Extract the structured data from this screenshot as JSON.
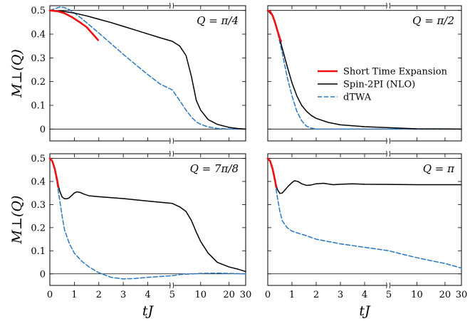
{
  "chart_data": [
    {
      "type": "line",
      "panel_label": "Q = π/4",
      "ylabel": "M⊥(Q)",
      "xlabel": "",
      "series": [
        {
          "name": "Short Time Expansion",
          "color": "#ee1111",
          "style": "solid",
          "points": [
            [
              0,
              0.5
            ],
            [
              0.3,
              0.497
            ],
            [
              0.6,
              0.488
            ],
            [
              0.9,
              0.472
            ],
            [
              1.2,
              0.452
            ],
            [
              1.5,
              0.43
            ],
            [
              1.8,
              0.395
            ],
            [
              1.97,
              0.375
            ]
          ]
        },
        {
          "name": "Spin-2PI (NLO)",
          "color": "#000000",
          "style": "solid",
          "points": [
            [
              0,
              0.5
            ],
            [
              0.5,
              0.497
            ],
            [
              1,
              0.489
            ],
            [
              1.5,
              0.477
            ],
            [
              2,
              0.463
            ],
            [
              2.5,
              0.449
            ],
            [
              3,
              0.433
            ],
            [
              3.5,
              0.417
            ],
            [
              4,
              0.401
            ],
            [
              4.5,
              0.385
            ],
            [
              5,
              0.37
            ],
            [
              6,
              0.35
            ],
            [
              7,
              0.31
            ],
            [
              8,
              0.22
            ],
            [
              9,
              0.12
            ],
            [
              10,
              0.08
            ],
            [
              12,
              0.04
            ],
            [
              15,
              0.02
            ],
            [
              20,
              0.007
            ],
            [
              25,
              0.002
            ],
            [
              30,
              0.0
            ]
          ]
        },
        {
          "name": "dTWA",
          "color": "#2a78c0",
          "style": "dashed",
          "points": [
            [
              0,
              0.5
            ],
            [
              0.2,
              0.507
            ],
            [
              0.4,
              0.514
            ],
            [
              0.6,
              0.512
            ],
            [
              0.8,
              0.503
            ],
            [
              1,
              0.489
            ],
            [
              1.3,
              0.466
            ],
            [
              1.6,
              0.44
            ],
            [
              2,
              0.405
            ],
            [
              2.5,
              0.36
            ],
            [
              3,
              0.315
            ],
            [
              3.5,
              0.272
            ],
            [
              4,
              0.23
            ],
            [
              4.5,
              0.19
            ],
            [
              5,
              0.165
            ],
            [
              6,
              0.12
            ],
            [
              7,
              0.08
            ],
            [
              8,
              0.05
            ],
            [
              9,
              0.03
            ],
            [
              10,
              0.02
            ],
            [
              12,
              0.009
            ],
            [
              15,
              0.003
            ],
            [
              20,
              0.0
            ],
            [
              30,
              0.0
            ]
          ]
        }
      ]
    },
    {
      "type": "line",
      "panel_label": "Q = π/2",
      "ylabel": "",
      "xlabel": "",
      "legend": {
        "position": "right",
        "entries": [
          "Short Time Expansion",
          "Spin-2PI (NLO)",
          "dTWA"
        ]
      },
      "series": [
        {
          "name": "Short Time Expansion",
          "color": "#ee1111",
          "style": "solid",
          "points": [
            [
              0,
              0.5
            ],
            [
              0.1,
              0.495
            ],
            [
              0.2,
              0.478
            ],
            [
              0.3,
              0.45
            ],
            [
              0.4,
              0.415
            ],
            [
              0.5,
              0.382
            ],
            [
              0.55,
              0.37
            ]
          ]
        },
        {
          "name": "Spin-2PI (NLO)",
          "color": "#000000",
          "style": "solid",
          "points": [
            [
              0,
              0.5
            ],
            [
              0.2,
              0.478
            ],
            [
              0.4,
              0.415
            ],
            [
              0.6,
              0.34
            ],
            [
              0.8,
              0.265
            ],
            [
              1,
              0.195
            ],
            [
              1.2,
              0.14
            ],
            [
              1.4,
              0.1
            ],
            [
              1.6,
              0.075
            ],
            [
              1.8,
              0.057
            ],
            [
              2,
              0.045
            ],
            [
              2.5,
              0.028
            ],
            [
              3,
              0.018
            ],
            [
              4,
              0.01
            ],
            [
              5,
              0.006
            ],
            [
              10,
              0.001
            ],
            [
              30,
              0.0
            ]
          ]
        },
        {
          "name": "dTWA",
          "color": "#2a78c0",
          "style": "dashed",
          "points": [
            [
              0,
              0.5
            ],
            [
              0.2,
              0.478
            ],
            [
              0.4,
              0.41
            ],
            [
              0.6,
              0.32
            ],
            [
              0.8,
              0.22
            ],
            [
              1,
              0.14
            ],
            [
              1.2,
              0.075
            ],
            [
              1.4,
              0.035
            ],
            [
              1.6,
              0.012
            ],
            [
              1.8,
              0.004
            ],
            [
              2,
              0.0
            ],
            [
              3,
              0.0
            ],
            [
              30,
              0.0
            ]
          ]
        }
      ]
    },
    {
      "type": "line",
      "panel_label": "Q = 7π/8",
      "ylabel": "M⊥(Q)",
      "xlabel": "tJ",
      "series": [
        {
          "name": "Short Time Expansion",
          "color": "#ee1111",
          "style": "solid",
          "points": [
            [
              0,
              0.5
            ],
            [
              0.1,
              0.488
            ],
            [
              0.2,
              0.455
            ],
            [
              0.3,
              0.405
            ],
            [
              0.35,
              0.375
            ]
          ]
        },
        {
          "name": "Spin-2PI (NLO)",
          "color": "#000000",
          "style": "solid",
          "points": [
            [
              0,
              0.5
            ],
            [
              0.1,
              0.487
            ],
            [
              0.2,
              0.452
            ],
            [
              0.3,
              0.405
            ],
            [
              0.4,
              0.36
            ],
            [
              0.5,
              0.333
            ],
            [
              0.6,
              0.325
            ],
            [
              0.7,
              0.325
            ],
            [
              0.8,
              0.33
            ],
            [
              0.9,
              0.34
            ],
            [
              1,
              0.35
            ],
            [
              1.1,
              0.355
            ],
            [
              1.25,
              0.352
            ],
            [
              1.4,
              0.345
            ],
            [
              1.6,
              0.338
            ],
            [
              2,
              0.334
            ],
            [
              3,
              0.326
            ],
            [
              4,
              0.315
            ],
            [
              5,
              0.305
            ],
            [
              6,
              0.29
            ],
            [
              7,
              0.27
            ],
            [
              8,
              0.23
            ],
            [
              9,
              0.18
            ],
            [
              10,
              0.14
            ],
            [
              12,
              0.09
            ],
            [
              15,
              0.05
            ],
            [
              20,
              0.03
            ],
            [
              25,
              0.02
            ],
            [
              30,
              0.01
            ]
          ]
        },
        {
          "name": "dTWA",
          "color": "#2a78c0",
          "style": "dashed",
          "points": [
            [
              0,
              0.5
            ],
            [
              0.1,
              0.487
            ],
            [
              0.2,
              0.45
            ],
            [
              0.3,
              0.39
            ],
            [
              0.4,
              0.32
            ],
            [
              0.5,
              0.25
            ],
            [
              0.6,
              0.19
            ],
            [
              0.8,
              0.13
            ],
            [
              1,
              0.09
            ],
            [
              1.3,
              0.055
            ],
            [
              1.6,
              0.03
            ],
            [
              2,
              0.005
            ],
            [
              2.5,
              -0.015
            ],
            [
              3,
              -0.022
            ],
            [
              3.5,
              -0.02
            ],
            [
              4,
              -0.015
            ],
            [
              5,
              -0.008
            ],
            [
              6,
              -0.003
            ],
            [
              8,
              0.0
            ],
            [
              10,
              0.002
            ],
            [
              15,
              0.003
            ],
            [
              20,
              0.002
            ],
            [
              30,
              0.0
            ]
          ]
        }
      ]
    },
    {
      "type": "line",
      "panel_label": "Q = π",
      "ylabel": "",
      "xlabel": "tJ",
      "series": [
        {
          "name": "Short Time Expansion",
          "color": "#ee1111",
          "style": "solid",
          "points": [
            [
              0,
              0.5
            ],
            [
              0.1,
              0.488
            ],
            [
              0.2,
              0.455
            ],
            [
              0.3,
              0.405
            ],
            [
              0.35,
              0.375
            ]
          ]
        },
        {
          "name": "Spin-2PI (NLO)",
          "color": "#000000",
          "style": "solid",
          "points": [
            [
              0,
              0.5
            ],
            [
              0.1,
              0.488
            ],
            [
              0.2,
              0.452
            ],
            [
              0.3,
              0.405
            ],
            [
              0.4,
              0.365
            ],
            [
              0.5,
              0.348
            ],
            [
              0.6,
              0.35
            ],
            [
              0.7,
              0.362
            ],
            [
              0.85,
              0.38
            ],
            [
              1,
              0.395
            ],
            [
              1.1,
              0.403
            ],
            [
              1.25,
              0.4
            ],
            [
              1.4,
              0.39
            ],
            [
              1.6,
              0.383
            ],
            [
              1.8,
              0.385
            ],
            [
              2,
              0.39
            ],
            [
              2.3,
              0.392
            ],
            [
              2.7,
              0.386
            ],
            [
              3,
              0.388
            ],
            [
              3.5,
              0.39
            ],
            [
              4,
              0.388
            ],
            [
              5,
              0.387
            ],
            [
              10,
              0.386
            ],
            [
              20,
              0.386
            ],
            [
              30,
              0.386
            ]
          ]
        },
        {
          "name": "dTWA",
          "color": "#2a78c0",
          "style": "dashed",
          "points": [
            [
              0,
              0.5
            ],
            [
              0.1,
              0.487
            ],
            [
              0.2,
              0.45
            ],
            [
              0.3,
              0.395
            ],
            [
              0.4,
              0.33
            ],
            [
              0.5,
              0.27
            ],
            [
              0.6,
              0.23
            ],
            [
              0.8,
              0.2
            ],
            [
              1,
              0.185
            ],
            [
              1.2,
              0.178
            ],
            [
              1.6,
              0.165
            ],
            [
              2,
              0.15
            ],
            [
              3,
              0.13
            ],
            [
              4,
              0.115
            ],
            [
              5,
              0.1
            ],
            [
              7,
              0.085
            ],
            [
              10,
              0.07
            ],
            [
              15,
              0.055
            ],
            [
              20,
              0.045
            ],
            [
              30,
              0.025
            ]
          ]
        }
      ]
    }
  ],
  "axes": {
    "x_ticks": [
      0,
      1,
      2,
      3,
      4,
      5,
      10,
      20,
      30
    ],
    "x_tick_labels": [
      "0",
      "1",
      "2",
      "3",
      "4",
      "5",
      "10",
      "20",
      "30"
    ],
    "x_labeled_ticks": [
      "0",
      "1",
      "2",
      "3",
      "4",
      "5",
      "10",
      "20",
      "30"
    ],
    "x_scale": "piecewise: linear 0–5 then logarithmic 5–30, axis break marks at 5",
    "y_ticks": [
      0,
      0.1,
      0.2,
      0.3,
      0.4,
      0.5
    ],
    "y_tick_labels": [
      "0",
      "0.1",
      "0.2",
      "0.3",
      "0.4",
      "0.5"
    ],
    "ylim": [
      -0.05,
      0.52
    ],
    "reference_lines_y": [
      0,
      0.5
    ]
  }
}
